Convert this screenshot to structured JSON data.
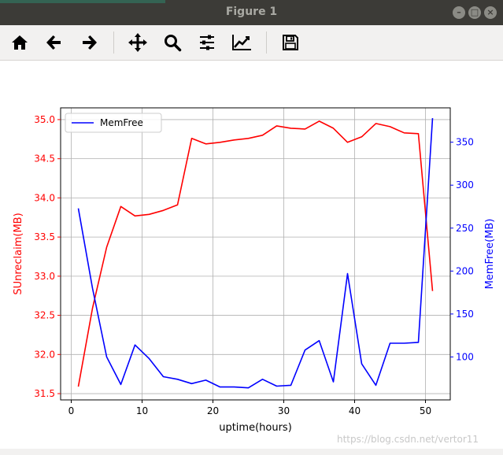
{
  "window": {
    "title": "Figure 1"
  },
  "toolbar": {
    "buttons": [
      {
        "name": "home-icon",
        "label": "Home"
      },
      {
        "name": "back-icon",
        "label": "Back"
      },
      {
        "name": "forward-icon",
        "label": "Forward"
      },
      {
        "name": "pan-icon",
        "label": "Pan"
      },
      {
        "name": "zoom-icon",
        "label": "Zoom"
      },
      {
        "name": "subplots-icon",
        "label": "Configure subplots"
      },
      {
        "name": "edit-axis-icon",
        "label": "Edit axis"
      },
      {
        "name": "save-icon",
        "label": "Save"
      }
    ]
  },
  "watermark": "https://blog.csdn.net/vertor11",
  "colors": {
    "left_series": "#ff0000",
    "right_series": "#0000ff",
    "grid": "#b0b0b0",
    "titlebar": "#3c3b37",
    "toolbar": "#f2f1f0"
  },
  "chart_data": {
    "type": "line",
    "xlabel": "uptime(hours)",
    "ylabel_left": "SUnreclaim(MB)",
    "ylabel_right": "MemFree(MB)",
    "xlim": [
      -1.5,
      53.5
    ],
    "ylim_left": [
      31.42,
      35.15
    ],
    "ylim_right": [
      50,
      390
    ],
    "x_ticks": [
      0,
      10,
      20,
      30,
      40,
      50
    ],
    "y_left_ticks": [
      "31.5",
      "32.0",
      "32.5",
      "33.0",
      "33.5",
      "34.0",
      "34.5",
      "35.0"
    ],
    "y_right_ticks": [
      "100",
      "150",
      "200",
      "250",
      "300",
      "350"
    ],
    "grid": true,
    "legend": {
      "entries": [
        "MemFree"
      ],
      "placement": "top-left",
      "text": "MemFree"
    },
    "x": [
      1,
      3,
      5,
      7,
      9,
      11,
      13,
      15,
      17,
      19,
      21,
      23,
      25,
      27,
      29,
      31,
      33,
      35,
      37,
      39,
      41,
      43,
      45,
      47,
      49,
      51
    ],
    "series": [
      {
        "name": "SUnreclaim",
        "axis": "left",
        "color": "#ff0000",
        "values": [
          31.59,
          32.59,
          33.37,
          33.89,
          33.77,
          33.79,
          33.84,
          33.91,
          34.76,
          34.69,
          34.71,
          34.74,
          34.76,
          34.8,
          34.92,
          34.89,
          34.88,
          34.98,
          34.89,
          34.71,
          34.78,
          34.95,
          34.91,
          34.83,
          34.82,
          32.81
        ]
      },
      {
        "name": "MemFree",
        "axis": "right",
        "color": "#0000ff",
        "values": [
          273,
          180,
          100,
          68,
          114,
          98,
          77,
          74,
          69,
          73,
          65,
          65,
          64,
          74,
          66,
          67,
          108,
          119,
          71,
          197,
          92,
          67,
          116,
          116,
          117,
          378
        ]
      }
    ]
  }
}
